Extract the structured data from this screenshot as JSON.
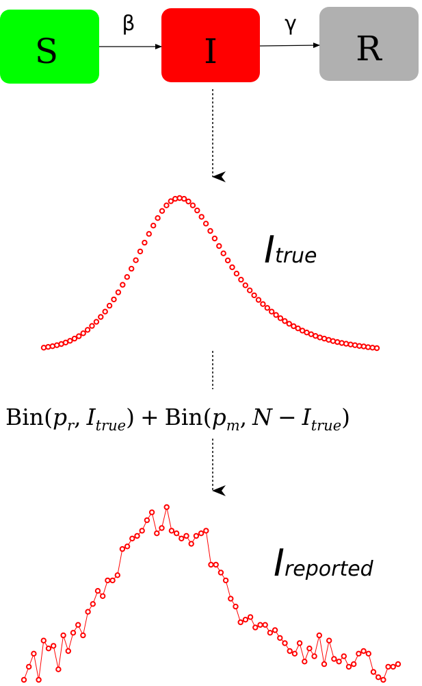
{
  "compartments": [
    {
      "label": "S",
      "color": "#00ff00"
    },
    {
      "label": "I",
      "color": "#ff0000"
    },
    {
      "label": "R",
      "color": "#b0b0b0"
    }
  ],
  "rates": {
    "s_to_i": "β",
    "i_to_r": "γ"
  },
  "equation": {
    "bin1_name": "Bin",
    "bin1_p": "p",
    "bin1_p_sub": "r",
    "bin1_i": "I",
    "bin1_i_sub": "true",
    "plus": "+",
    "bin2_name": "Bin",
    "bin2_p": "p",
    "bin2_p_sub": "m",
    "bin2_n": "N",
    "minus": "−",
    "bin2_i": "I",
    "bin2_i_sub": "true",
    "open_paren": "(",
    "comma": ",",
    "close_paren": ")"
  },
  "true_series": {
    "label_main": "I",
    "label_sub": "true",
    "color": "#ff0000",
    "values": [
      0.5,
      0.8,
      1.1,
      1.5,
      2.0,
      2.6,
      3.3,
      4.2,
      5.2,
      6.4,
      7.8,
      9.4,
      11.1,
      13.1,
      15.3,
      17.7,
      20.3,
      23.2,
      26.3,
      29.5,
      32.9,
      36.4,
      40.0,
      43.6,
      47.2,
      50.6,
      53.7,
      56.6,
      58.9,
      60.6,
      61.6,
      61.9,
      61.6,
      60.5,
      58.9,
      56.8,
      54.2,
      51.4,
      48.4,
      45.3,
      42.2,
      39.2,
      36.3,
      33.5,
      30.9,
      28.4,
      26.1,
      24.0,
      22.0,
      20.1,
      18.4,
      16.8,
      15.3,
      13.9,
      12.6,
      11.4,
      10.3,
      9.3,
      8.4,
      7.5,
      6.7,
      6.0,
      5.3,
      4.7,
      4.2,
      3.7,
      3.2,
      2.8,
      2.4,
      2.1,
      1.8,
      1.5,
      1.2,
      1.0,
      0.7,
      0.5,
      0.3
    ]
  },
  "reported_series": {
    "label_main": "I",
    "label_sub": "reported",
    "color": "#ff0000",
    "values": [
      0,
      5,
      10,
      0,
      15,
      12,
      13,
      4,
      17,
      11,
      18,
      21,
      17,
      26,
      29,
      34,
      32,
      38,
      38,
      40,
      50,
      51,
      54,
      55,
      57,
      61,
      64,
      56,
      58,
      66,
      57,
      56,
      54,
      55,
      52,
      55,
      56,
      57,
      44,
      44,
      41,
      38,
      31,
      28,
      22,
      23,
      24,
      20,
      21,
      21,
      18,
      19,
      16,
      14,
      11,
      10,
      14,
      7,
      12,
      9,
      17,
      6,
      15,
      8,
      7,
      9,
      5,
      6,
      10,
      11,
      10,
      3,
      1,
      0,
      5,
      5,
      6
    ]
  }
}
